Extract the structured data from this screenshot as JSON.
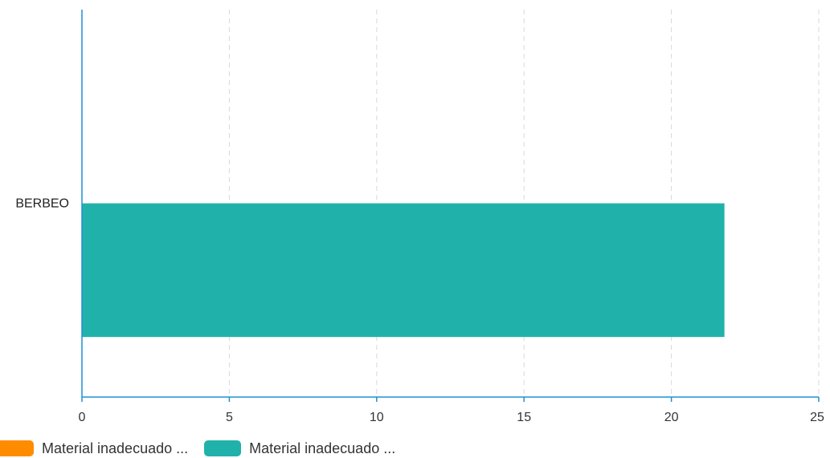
{
  "chart_data": {
    "type": "bar",
    "orientation": "horizontal",
    "categories": [
      "BERBEO"
    ],
    "series": [
      {
        "name": "Material inadecuado ...",
        "values": [
          0
        ],
        "color": "#FF8C00"
      },
      {
        "name": "Material inadecuado ...",
        "values": [
          21.8
        ],
        "color": "#20B2AA"
      }
    ],
    "xlim": [
      0,
      25
    ],
    "x_ticks": [
      "0",
      "5",
      "10",
      "15",
      "20",
      "25"
    ],
    "title": "",
    "xlabel": "",
    "ylabel": "",
    "grid": "vertical-dashed",
    "legend": "bottom-left",
    "axis_color": "#1E90D6",
    "grid_color": "#D9D9D9"
  }
}
